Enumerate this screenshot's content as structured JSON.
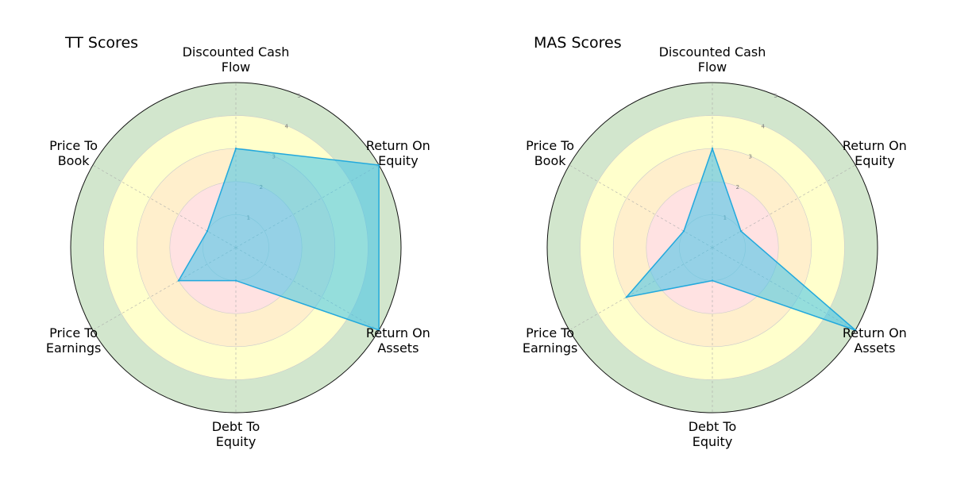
{
  "chart_data": [
    {
      "type": "radar",
      "title": "TT Scores",
      "categories": [
        "Discounted Cash Flow",
        "Return On Equity",
        "Return On Assets",
        "Debt To Equity",
        "Price To Earnings",
        "Price To Book"
      ],
      "label_lines": [
        [
          "Discounted Cash",
          "Flow"
        ],
        [
          "Return On",
          "Equity"
        ],
        [
          "Return On",
          "Assets"
        ],
        [
          "Debt To",
          "Equity"
        ],
        [
          "Price To",
          "Earnings"
        ],
        [
          "Price To",
          "Book"
        ]
      ],
      "values": [
        3,
        5,
        5,
        1,
        2,
        1
      ],
      "rlim": [
        0,
        5
      ],
      "rticks": [
        "1",
        "2",
        "3",
        "4",
        "5"
      ],
      "grid": true
    },
    {
      "type": "radar",
      "title": "MAS Scores",
      "categories": [
        "Discounted Cash Flow",
        "Return On Equity",
        "Return On Assets",
        "Debt To Equity",
        "Price To Earnings",
        "Price To Book"
      ],
      "label_lines": [
        [
          "Discounted Cash",
          "Flow"
        ],
        [
          "Return On",
          "Equity"
        ],
        [
          "Return On",
          "Assets"
        ],
        [
          "Debt To",
          "Equity"
        ],
        [
          "Price To",
          "Earnings"
        ],
        [
          "Price To",
          "Book"
        ]
      ],
      "values": [
        3,
        1,
        5,
        1,
        3,
        1
      ],
      "rlim": [
        0,
        5
      ],
      "rticks": [
        "1",
        "2",
        "3",
        "4",
        "5"
      ],
      "grid": true
    }
  ],
  "colors": {
    "title": "#1aa3c9",
    "polygon_fill": "#3ec2ea",
    "polygon_stroke": "#22a9dd",
    "band_red": "#ffe2e2",
    "band_orange": "#ffefcc",
    "band_yellow": "#ffffcc",
    "band_green": "#d2e6cd",
    "outer_ring": "#111111",
    "grid": "#aaaaaa"
  }
}
